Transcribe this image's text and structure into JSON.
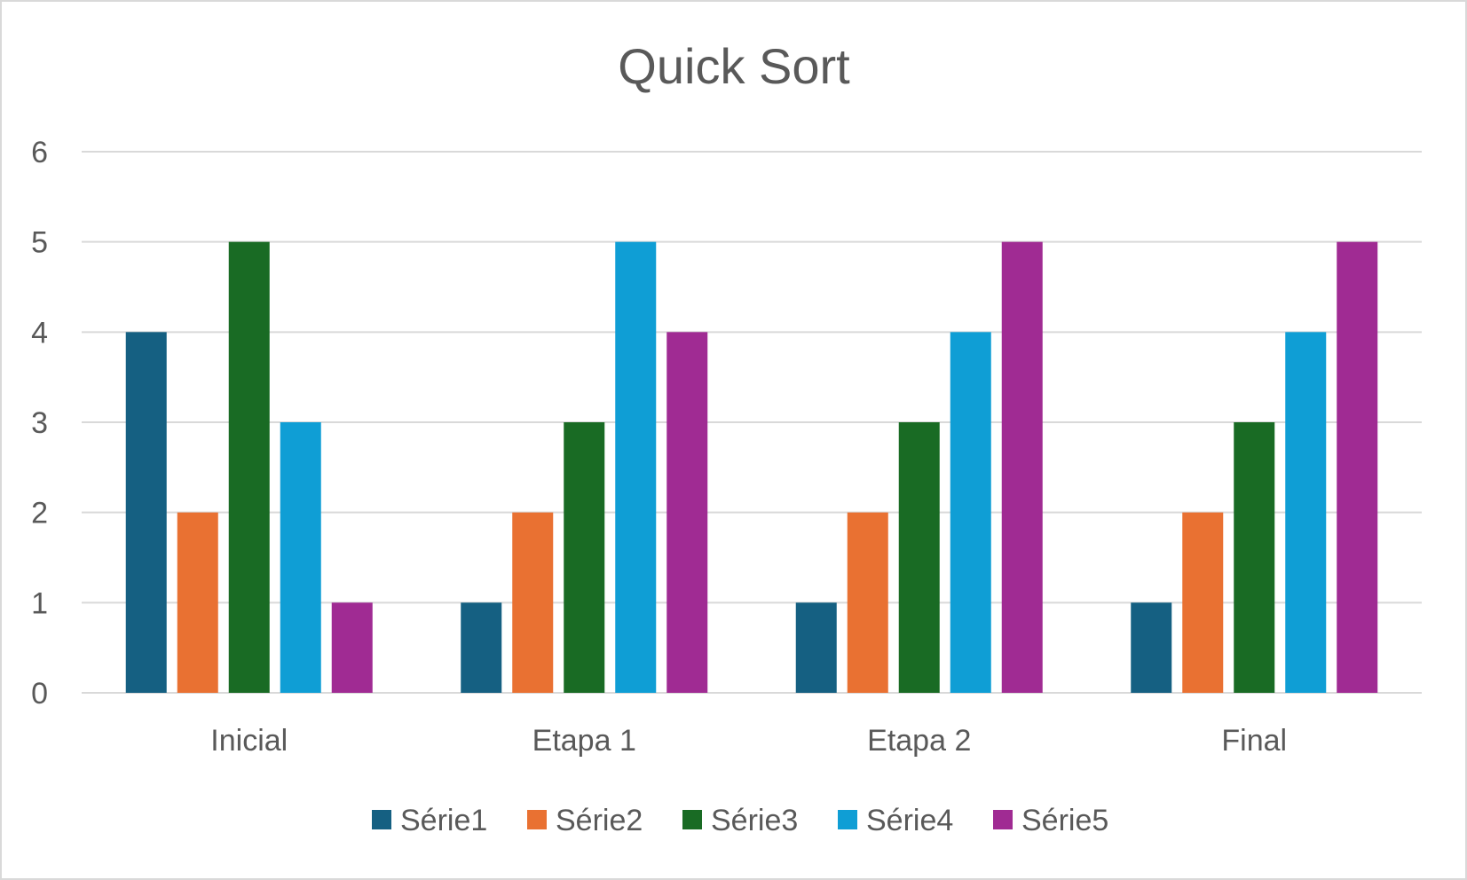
{
  "chart_data": {
    "type": "bar",
    "title": "Quick Sort",
    "xlabel": "",
    "ylabel": "",
    "categories": [
      "Inicial",
      "Etapa 1",
      "Etapa 2",
      "Final"
    ],
    "series": [
      {
        "name": "Série1",
        "values": [
          4,
          1,
          1,
          1
        ],
        "color": "#156082"
      },
      {
        "name": "Série2",
        "values": [
          2,
          2,
          2,
          2
        ],
        "color": "#E97132"
      },
      {
        "name": "Série3",
        "values": [
          5,
          3,
          3,
          3
        ],
        "color": "#196B24"
      },
      {
        "name": "Série4",
        "values": [
          3,
          5,
          4,
          4
        ],
        "color": "#0F9ED5"
      },
      {
        "name": "Série5",
        "values": [
          1,
          4,
          5,
          5
        ],
        "color": "#A02B93"
      }
    ],
    "ylim": [
      0,
      6
    ],
    "yticks": [
      "0",
      "1",
      "2",
      "3",
      "4",
      "5",
      "6"
    ],
    "grid": true,
    "legend_position": "bottom",
    "colors": {
      "text": "#595959",
      "gridline": "#D9D9D9",
      "frame": "#D9D9D9"
    }
  }
}
